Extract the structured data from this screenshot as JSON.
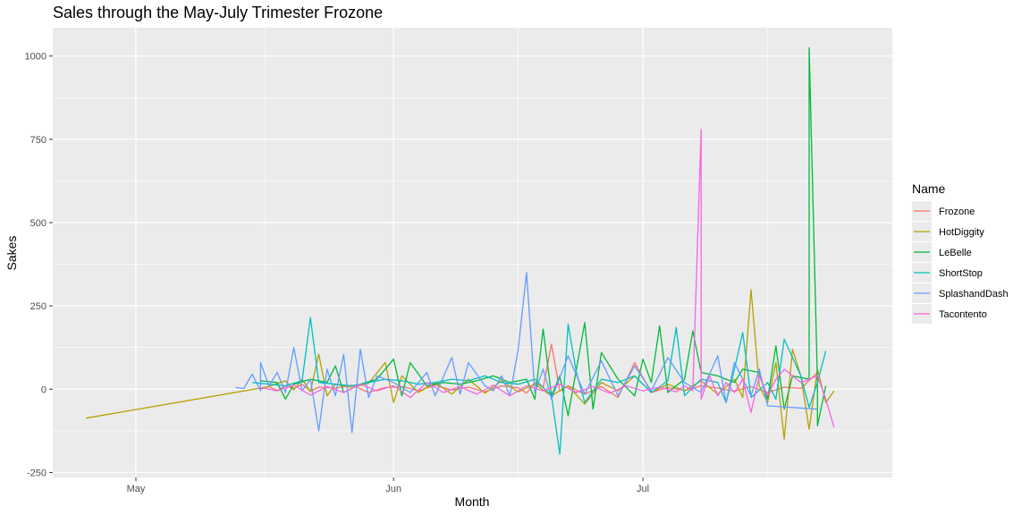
{
  "chart_data": {
    "type": "line",
    "title": "Sales through the May-July Trimester Frozone",
    "xlabel": "Month",
    "ylabel": "Sakes",
    "ylim": [
      -265,
      1085
    ],
    "xlim": [
      "2023-04-21",
      "2023-07-31"
    ],
    "x_ticks": [
      {
        "date": "2023-05-01",
        "label": "May"
      },
      {
        "date": "2023-06-01",
        "label": "Jun"
      },
      {
        "date": "2023-07-01",
        "label": "Jul"
      }
    ],
    "y_ticks": [
      -250,
      0,
      250,
      500,
      750,
      1000
    ],
    "grid": true,
    "legend": {
      "title": "Name",
      "position": "right"
    },
    "series": [
      {
        "name": "Frozone",
        "color": "#F8766D",
        "points": [
          [
            "2023-05-16",
            0
          ],
          [
            "2023-05-17",
            8
          ],
          [
            "2023-05-18",
            -4
          ],
          [
            "2023-05-19",
            10
          ],
          [
            "2023-05-20",
            2
          ],
          [
            "2023-05-21",
            15
          ],
          [
            "2023-05-22",
            -6
          ],
          [
            "2023-05-23",
            6
          ],
          [
            "2023-05-25",
            3
          ],
          [
            "2023-05-27",
            12
          ],
          [
            "2023-05-29",
            -10
          ],
          [
            "2023-05-31",
            5
          ],
          [
            "2023-06-02",
            8
          ],
          [
            "2023-06-04",
            -5
          ],
          [
            "2023-06-06",
            12
          ],
          [
            "2023-06-08",
            -3
          ],
          [
            "2023-06-10",
            6
          ],
          [
            "2023-06-12",
            -8
          ],
          [
            "2023-06-14",
            10
          ],
          [
            "2023-06-16",
            4
          ],
          [
            "2023-06-17",
            -12
          ],
          [
            "2023-06-18",
            20
          ],
          [
            "2023-06-19",
            5
          ],
          [
            "2023-06-20",
            135
          ],
          [
            "2023-06-21",
            -6
          ],
          [
            "2023-06-22",
            10
          ],
          [
            "2023-06-24",
            -15
          ],
          [
            "2023-06-26",
            8
          ],
          [
            "2023-06-28",
            -25
          ],
          [
            "2023-06-30",
            80
          ],
          [
            "2023-07-02",
            -10
          ],
          [
            "2023-07-04",
            5
          ],
          [
            "2023-07-06",
            -4
          ],
          [
            "2023-07-08",
            10
          ],
          [
            "2023-07-10",
            3
          ],
          [
            "2023-07-12",
            -6
          ],
          [
            "2023-07-14",
            8
          ],
          [
            "2023-07-16",
            -10
          ],
          [
            "2023-07-18",
            6
          ],
          [
            "2023-07-20",
            2
          ],
          [
            "2023-07-22",
            50
          ]
        ]
      },
      {
        "name": "HotDiggity",
        "color": "#B79F00",
        "points": [
          [
            "2023-04-25",
            -87
          ],
          [
            "2023-05-15",
            -1
          ],
          [
            "2023-05-17",
            8
          ],
          [
            "2023-05-19",
            25
          ],
          [
            "2023-05-20",
            -2
          ],
          [
            "2023-05-21",
            30
          ],
          [
            "2023-05-22",
            -8
          ],
          [
            "2023-05-23",
            105
          ],
          [
            "2023-05-24",
            -20
          ],
          [
            "2023-05-25",
            15
          ],
          [
            "2023-05-27",
            5
          ],
          [
            "2023-05-29",
            18
          ],
          [
            "2023-05-31",
            80
          ],
          [
            "2023-06-01",
            -40
          ],
          [
            "2023-06-02",
            40
          ],
          [
            "2023-06-04",
            -10
          ],
          [
            "2023-06-06",
            20
          ],
          [
            "2023-06-08",
            -15
          ],
          [
            "2023-06-10",
            30
          ],
          [
            "2023-06-12",
            -12
          ],
          [
            "2023-06-14",
            25
          ],
          [
            "2023-06-16",
            -8
          ],
          [
            "2023-06-18",
            15
          ],
          [
            "2023-06-20",
            -20
          ],
          [
            "2023-06-22",
            10
          ],
          [
            "2023-06-24",
            -45
          ],
          [
            "2023-06-26",
            20
          ],
          [
            "2023-06-28",
            -5
          ],
          [
            "2023-06-30",
            40
          ],
          [
            "2023-07-02",
            -10
          ],
          [
            "2023-07-04",
            15
          ],
          [
            "2023-07-06",
            -5
          ],
          [
            "2023-07-08",
            25
          ],
          [
            "2023-07-10",
            -15
          ],
          [
            "2023-07-12",
            30
          ],
          [
            "2023-07-13",
            -25
          ],
          [
            "2023-07-14",
            298
          ],
          [
            "2023-07-15",
            10
          ],
          [
            "2023-07-16",
            -40
          ],
          [
            "2023-07-17",
            80
          ],
          [
            "2023-07-18",
            -150
          ],
          [
            "2023-07-19",
            120
          ],
          [
            "2023-07-20",
            40
          ],
          [
            "2023-07-21",
            -120
          ],
          [
            "2023-07-22",
            60
          ],
          [
            "2023-07-23",
            -40
          ],
          [
            "2023-07-24",
            -5
          ]
        ]
      },
      {
        "name": "LeBelle",
        "color": "#00BA38",
        "points": [
          [
            "2023-05-16",
            25
          ],
          [
            "2023-05-18",
            20
          ],
          [
            "2023-05-19",
            -30
          ],
          [
            "2023-05-20",
            15
          ],
          [
            "2023-05-22",
            30
          ],
          [
            "2023-05-24",
            20
          ],
          [
            "2023-05-25",
            70
          ],
          [
            "2023-05-26",
            -10
          ],
          [
            "2023-05-28",
            15
          ],
          [
            "2023-05-30",
            30
          ],
          [
            "2023-06-01",
            90
          ],
          [
            "2023-06-02",
            -20
          ],
          [
            "2023-06-03",
            80
          ],
          [
            "2023-06-05",
            10
          ],
          [
            "2023-06-07",
            20
          ],
          [
            "2023-06-09",
            15
          ],
          [
            "2023-06-11",
            25
          ],
          [
            "2023-06-13",
            40
          ],
          [
            "2023-06-15",
            20
          ],
          [
            "2023-06-17",
            30
          ],
          [
            "2023-06-18",
            -30
          ],
          [
            "2023-06-19",
            180
          ],
          [
            "2023-06-20",
            -20
          ],
          [
            "2023-06-21",
            40
          ],
          [
            "2023-06-22",
            -80
          ],
          [
            "2023-06-23",
            60
          ],
          [
            "2023-06-24",
            200
          ],
          [
            "2023-06-25",
            -60
          ],
          [
            "2023-06-26",
            110
          ],
          [
            "2023-06-28",
            30
          ],
          [
            "2023-06-30",
            -20
          ],
          [
            "2023-07-01",
            90
          ],
          [
            "2023-07-02",
            20
          ],
          [
            "2023-07-03",
            190
          ],
          [
            "2023-07-04",
            -10
          ],
          [
            "2023-07-06",
            30
          ],
          [
            "2023-07-07",
            175
          ],
          [
            "2023-07-08",
            50
          ],
          [
            "2023-07-10",
            40
          ],
          [
            "2023-07-12",
            20
          ],
          [
            "2023-07-13",
            60
          ],
          [
            "2023-07-15",
            50
          ],
          [
            "2023-07-16",
            -30
          ],
          [
            "2023-07-17",
            130
          ],
          [
            "2023-07-18",
            -60
          ],
          [
            "2023-07-19",
            40
          ],
          [
            "2023-07-21",
            30
          ],
          [
            "2023-07-21",
            1025
          ],
          [
            "2023-07-22",
            20
          ],
          [
            "2023-07-22",
            -110
          ],
          [
            "2023-07-23",
            10
          ]
        ]
      },
      {
        "name": "ShortStop",
        "color": "#00BFC4",
        "points": [
          [
            "2023-05-15",
            20
          ],
          [
            "2023-05-17",
            15
          ],
          [
            "2023-05-19",
            10
          ],
          [
            "2023-05-21",
            25
          ],
          [
            "2023-05-22",
            215
          ],
          [
            "2023-05-23",
            20
          ],
          [
            "2023-05-25",
            15
          ],
          [
            "2023-05-27",
            10
          ],
          [
            "2023-05-29",
            20
          ],
          [
            "2023-05-31",
            30
          ],
          [
            "2023-06-02",
            25
          ],
          [
            "2023-06-04",
            15
          ],
          [
            "2023-06-06",
            20
          ],
          [
            "2023-06-08",
            30
          ],
          [
            "2023-06-10",
            25
          ],
          [
            "2023-06-12",
            40
          ],
          [
            "2023-06-14",
            20
          ],
          [
            "2023-06-16",
            15
          ],
          [
            "2023-06-18",
            30
          ],
          [
            "2023-06-20",
            -20
          ],
          [
            "2023-06-21",
            -195
          ],
          [
            "2023-06-22",
            195
          ],
          [
            "2023-06-23",
            50
          ],
          [
            "2023-06-24",
            -40
          ],
          [
            "2023-06-26",
            30
          ],
          [
            "2023-06-28",
            20
          ],
          [
            "2023-06-30",
            40
          ],
          [
            "2023-07-02",
            -10
          ],
          [
            "2023-07-04",
            25
          ],
          [
            "2023-07-05",
            185
          ],
          [
            "2023-07-06",
            -20
          ],
          [
            "2023-07-08",
            30
          ],
          [
            "2023-07-10",
            20
          ],
          [
            "2023-07-11",
            -40
          ],
          [
            "2023-07-12",
            60
          ],
          [
            "2023-07-13",
            170
          ],
          [
            "2023-07-14",
            -25
          ],
          [
            "2023-07-16",
            20
          ],
          [
            "2023-07-17",
            -30
          ],
          [
            "2023-07-18",
            150
          ],
          [
            "2023-07-20",
            40
          ],
          [
            "2023-07-21",
            -55
          ],
          [
            "2023-07-22",
            20
          ],
          [
            "2023-07-23",
            115
          ]
        ]
      },
      {
        "name": "SplashandDash",
        "color": "#619CFF",
        "points": [
          [
            "2023-05-13",
            5
          ],
          [
            "2023-05-14",
            2
          ],
          [
            "2023-05-15",
            45
          ],
          [
            "2023-05-16",
            -5
          ],
          [
            "2023-05-16",
            80
          ],
          [
            "2023-05-17",
            10
          ],
          [
            "2023-05-18",
            50
          ],
          [
            "2023-05-19",
            -10
          ],
          [
            "2023-05-20",
            125
          ],
          [
            "2023-05-21",
            -5
          ],
          [
            "2023-05-22",
            30
          ],
          [
            "2023-05-23",
            -125
          ],
          [
            "2023-05-24",
            60
          ],
          [
            "2023-05-25",
            -20
          ],
          [
            "2023-05-26",
            105
          ],
          [
            "2023-05-27",
            -130
          ],
          [
            "2023-05-28",
            120
          ],
          [
            "2023-05-29",
            -25
          ],
          [
            "2023-05-30",
            40
          ],
          [
            "2023-06-01",
            20
          ],
          [
            "2023-06-03",
            -10
          ],
          [
            "2023-06-05",
            50
          ],
          [
            "2023-06-06",
            -20
          ],
          [
            "2023-06-08",
            95
          ],
          [
            "2023-06-09",
            -15
          ],
          [
            "2023-06-10",
            80
          ],
          [
            "2023-06-12",
            10
          ],
          [
            "2023-06-13",
            -5
          ],
          [
            "2023-06-14",
            40
          ],
          [
            "2023-06-15",
            -20
          ],
          [
            "2023-06-16",
            120
          ],
          [
            "2023-06-17",
            350
          ],
          [
            "2023-06-18",
            -10
          ],
          [
            "2023-06-19",
            60
          ],
          [
            "2023-06-20",
            -30
          ],
          [
            "2023-06-22",
            100
          ],
          [
            "2023-06-24",
            -15
          ],
          [
            "2023-06-26",
            85
          ],
          [
            "2023-06-28",
            -20
          ],
          [
            "2023-06-30",
            70
          ],
          [
            "2023-07-02",
            -5
          ],
          [
            "2023-07-04",
            95
          ],
          [
            "2023-07-06",
            20
          ],
          [
            "2023-07-08",
            -10
          ],
          [
            "2023-07-10",
            100
          ],
          [
            "2023-07-11",
            -40
          ],
          [
            "2023-07-12",
            80
          ],
          [
            "2023-07-14",
            -20
          ],
          [
            "2023-07-15",
            60
          ],
          [
            "2023-07-16",
            -50
          ],
          [
            "2023-07-22",
            -60
          ]
        ]
      },
      {
        "name": "Tacontento",
        "color": "#F564E3",
        "points": [
          [
            "2023-05-16",
            5
          ],
          [
            "2023-05-18",
            -5
          ],
          [
            "2023-05-20",
            12
          ],
          [
            "2023-05-22",
            -18
          ],
          [
            "2023-05-24",
            8
          ],
          [
            "2023-05-26",
            -10
          ],
          [
            "2023-05-28",
            15
          ],
          [
            "2023-05-30",
            -5
          ],
          [
            "2023-06-01",
            10
          ],
          [
            "2023-06-03",
            -25
          ],
          [
            "2023-06-05",
            20
          ],
          [
            "2023-06-07",
            -10
          ],
          [
            "2023-06-09",
            8
          ],
          [
            "2023-06-11",
            -15
          ],
          [
            "2023-06-13",
            12
          ],
          [
            "2023-06-15",
            -20
          ],
          [
            "2023-06-17",
            10
          ],
          [
            "2023-06-19",
            -5
          ],
          [
            "2023-06-21",
            15
          ],
          [
            "2023-06-23",
            -10
          ],
          [
            "2023-06-25",
            8
          ],
          [
            "2023-06-27",
            -12
          ],
          [
            "2023-06-29",
            10
          ],
          [
            "2023-07-01",
            -5
          ],
          [
            "2023-07-03",
            6
          ],
          [
            "2023-07-05",
            -8
          ],
          [
            "2023-07-06",
            10
          ],
          [
            "2023-07-07",
            -5
          ],
          [
            "2023-07-08",
            780
          ],
          [
            "2023-07-08",
            -30
          ],
          [
            "2023-07-09",
            40
          ],
          [
            "2023-07-10",
            -20
          ],
          [
            "2023-07-11",
            20
          ],
          [
            "2023-07-12",
            -10
          ],
          [
            "2023-07-13",
            30
          ],
          [
            "2023-07-14",
            -70
          ],
          [
            "2023-07-15",
            40
          ],
          [
            "2023-07-16",
            -20
          ],
          [
            "2023-07-17",
            30
          ],
          [
            "2023-07-18",
            60
          ],
          [
            "2023-07-20",
            20
          ],
          [
            "2023-07-22",
            40
          ],
          [
            "2023-07-23",
            -30
          ],
          [
            "2023-07-24",
            -115
          ]
        ]
      }
    ]
  }
}
